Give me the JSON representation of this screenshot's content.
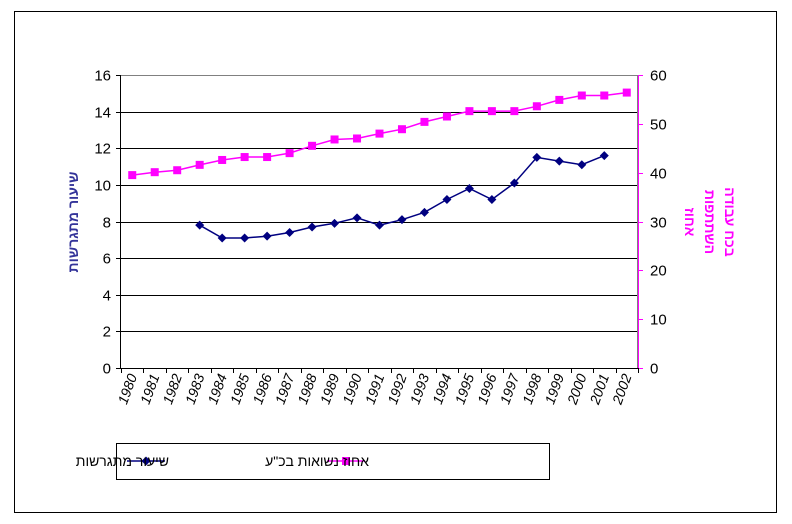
{
  "chart_data": {
    "type": "line",
    "title": "",
    "xlabel": "",
    "categories": [
      "1980",
      "1981",
      "1982",
      "1983",
      "1984",
      "1985",
      "1986",
      "1987",
      "1988",
      "1989",
      "1990",
      "1991",
      "1992",
      "1993",
      "1994",
      "1995",
      "1996",
      "1997",
      "1998",
      "1999",
      "2000",
      "2001",
      "2002"
    ],
    "left_axis": {
      "label": "שיעור מתגרשות",
      "range": [
        0,
        16
      ],
      "ticks": [
        "0",
        "2",
        "4",
        "6",
        "8",
        "10",
        "12",
        "14",
        "16"
      ]
    },
    "right_axis": {
      "label_line1": "אחוז",
      "label_line2": "השתתפות",
      "label_line3": "בכח עבודה",
      "range": [
        0,
        60
      ],
      "ticks": [
        "0",
        "10",
        "20",
        "30",
        "40",
        "50",
        "60"
      ]
    },
    "grid": "horizontal",
    "legend_position": "bottom-left",
    "series": [
      {
        "name": "שיעור מתגרשות",
        "axis": "left",
        "color": "#000080",
        "marker": "diamond",
        "values": [
          null,
          null,
          null,
          7.8,
          7.1,
          7.1,
          7.2,
          7.4,
          7.7,
          7.9,
          8.2,
          7.8,
          8.1,
          8.5,
          9.2,
          9.8,
          9.2,
          10.1,
          11.5,
          11.3,
          11.1,
          11.6,
          null
        ]
      },
      {
        "name": "אחוז נשואות בכ\"ע",
        "axis": "right",
        "color": "#ff00ff",
        "marker": "square",
        "values": [
          39.5,
          40.1,
          40.5,
          41.6,
          42.6,
          43.2,
          43.2,
          44.0,
          45.5,
          46.8,
          47.0,
          48.0,
          48.9,
          50.4,
          51.5,
          52.6,
          52.6,
          52.6,
          53.6,
          54.9,
          55.8,
          55.8,
          56.4
        ]
      }
    ],
    "colors": {
      "left_axis_label": "#333399",
      "right_axis_label": "#ff00ff",
      "plot_border": "#808080",
      "grid": "#000000"
    }
  }
}
